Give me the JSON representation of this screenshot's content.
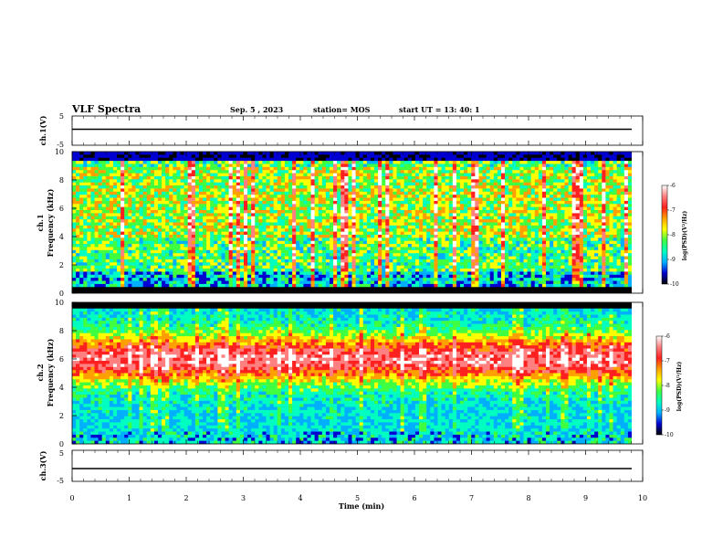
{
  "header": {
    "title": "VLF Spectra",
    "date": "Sep. 5 , 2023",
    "station": "station= MOS",
    "start_ut": "start  UT  =   13: 40: 1"
  },
  "chart_data": [
    {
      "type": "line",
      "panel": "ch1-waveform",
      "ylabel": "ch.1(V)",
      "yticks": [
        "5",
        "-5"
      ],
      "ylim": [
        -5,
        5
      ],
      "level": 0
    },
    {
      "type": "heatmap",
      "panel": "ch1-spectrogram",
      "ylabel": "Frequency (kHz)",
      "channel_label": "ch.1",
      "ylim": [
        0,
        10
      ],
      "yticks": [
        "0",
        "2",
        "4",
        "6",
        "8",
        "10"
      ],
      "colorbar": {
        "label": "log(PSD)(V²/Hz)",
        "range": [
          -10,
          -6
        ],
        "ticks": [
          "-6",
          "-7",
          "-8",
          "-9",
          "-10"
        ],
        "colors": [
          "#000000",
          "#0000d0",
          "#00b0ff",
          "#00ffc0",
          "#40ff40",
          "#ffff00",
          "#ffa000",
          "#ff2020",
          "#ff8080",
          "#ffffff"
        ]
      }
    },
    {
      "type": "heatmap",
      "panel": "ch2-spectrogram",
      "ylabel": "Frequency (kHz)",
      "channel_label": "ch.2",
      "ylim": [
        0,
        10
      ],
      "yticks": [
        "0",
        "2",
        "4",
        "6",
        "8",
        "10"
      ],
      "colorbar": {
        "label": "log(PSD)(V²/Hz)",
        "range": [
          -10,
          -6
        ],
        "ticks": [
          "-6",
          "-7",
          "-8",
          "-9",
          "-10"
        ],
        "colors": [
          "#000000",
          "#0000d0",
          "#00b0ff",
          "#00ffc0",
          "#40ff40",
          "#ffff00",
          "#ffa000",
          "#ff2020",
          "#ff8080",
          "#ffffff"
        ]
      }
    },
    {
      "type": "line",
      "panel": "ch3-waveform",
      "ylabel": "ch.3(V)",
      "yticks": [
        "5",
        "-5"
      ],
      "ylim": [
        -5,
        5
      ],
      "level": 0
    }
  ],
  "xaxis": {
    "label": "Time  (min)",
    "ticks": [
      "0",
      "1",
      "2",
      "3",
      "4",
      "5",
      "6",
      "7",
      "8",
      "9",
      "10"
    ],
    "xlim": [
      0,
      10
    ]
  }
}
